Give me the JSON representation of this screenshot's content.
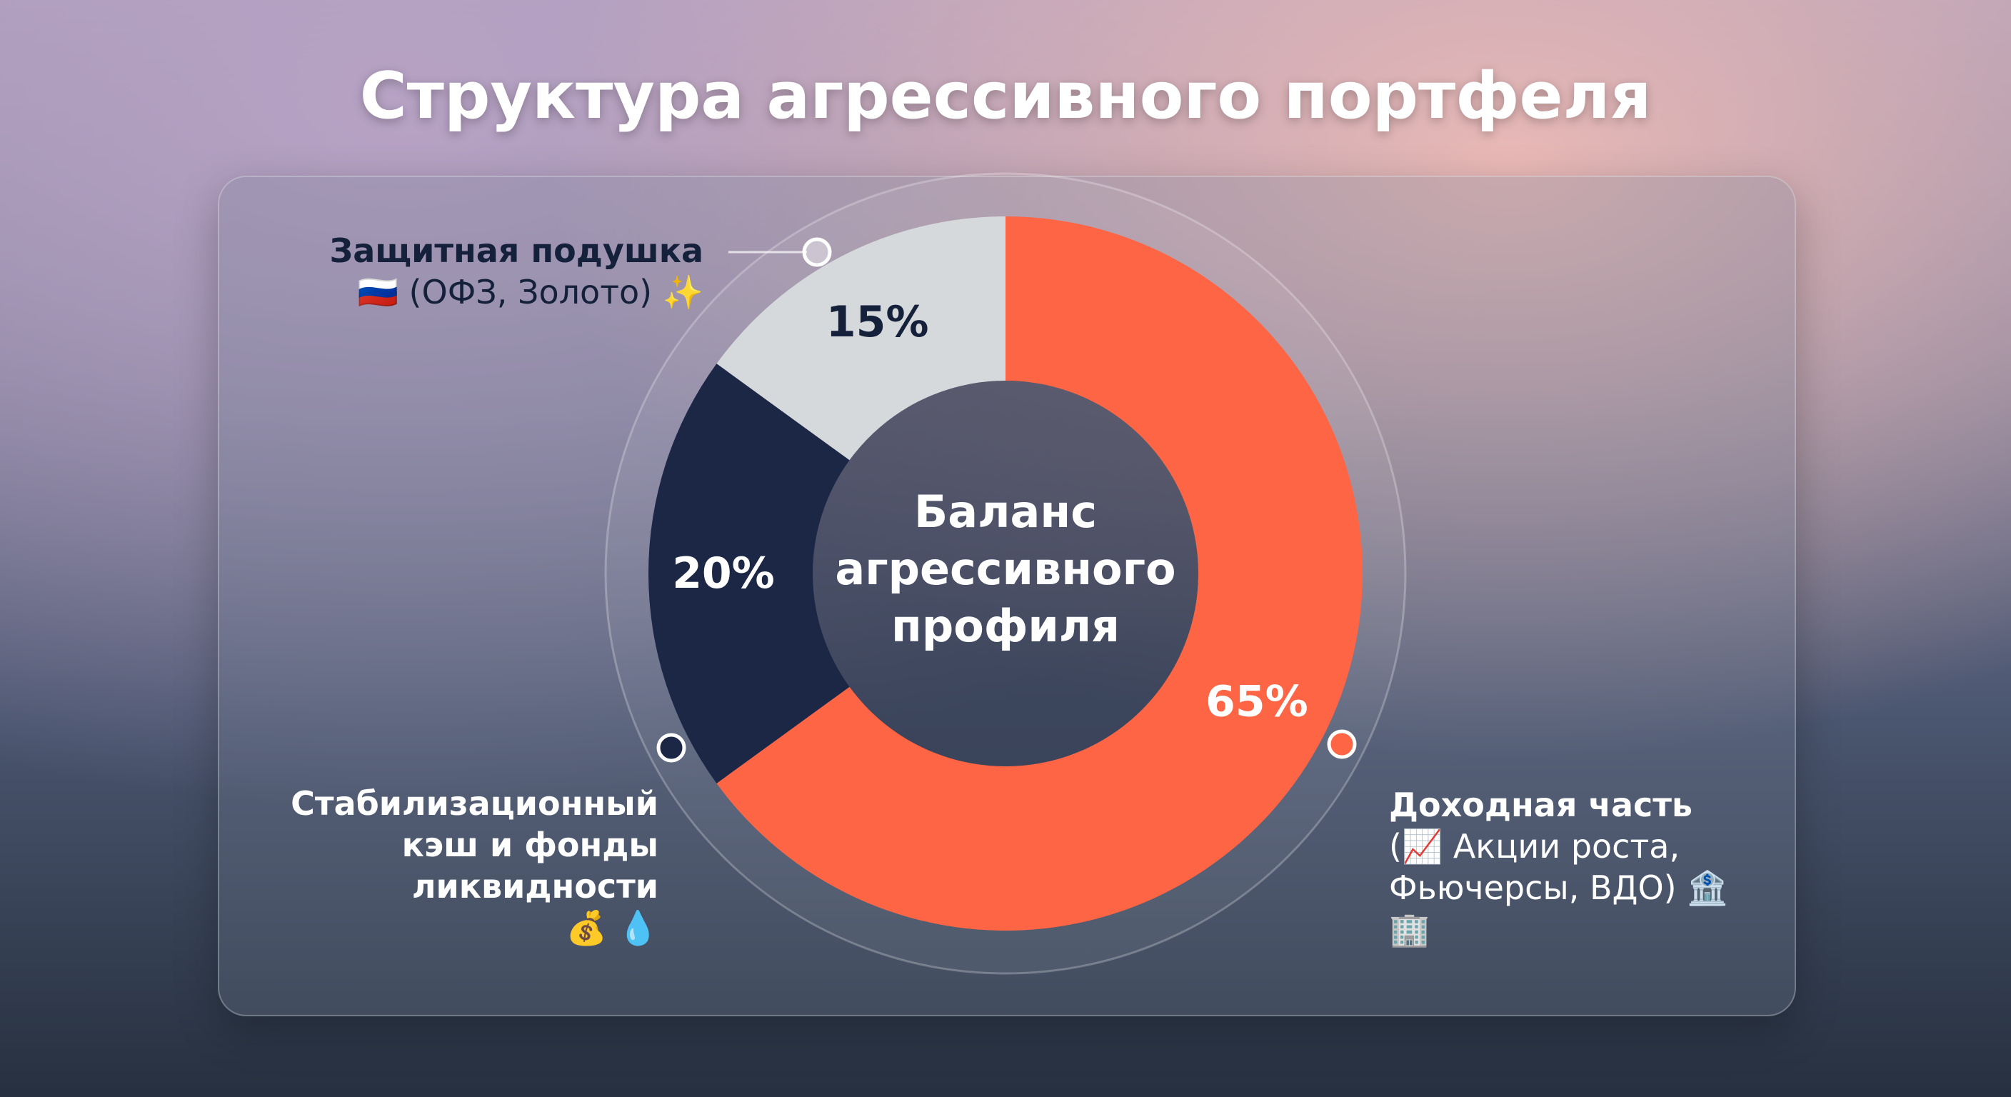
{
  "chart_data": {
    "type": "donut",
    "title": "Структура агрессивного портфеля",
    "center_label": [
      "Баланс",
      "агрессивного",
      "профиля"
    ],
    "categories": [
      "Доходная часть",
      "Стабилизационный кэш и фонды ликвидности",
      "Защитная подушка"
    ],
    "descriptions": [
      "(📈 Акции роста, Фьючерсы, ВДО) 🏦🏢",
      "💰 💧",
      "🇷🇺 (ОФЗ, Золото) ✨"
    ],
    "values": [
      65,
      20,
      15
    ],
    "value_labels": [
      "65%",
      "20%",
      "15%"
    ],
    "colors": [
      "#fe6545",
      "#1b2745",
      "#d6d9dc"
    ],
    "label_colors": [
      "#ffffff",
      "#ffffff",
      "#15203a"
    ]
  }
}
